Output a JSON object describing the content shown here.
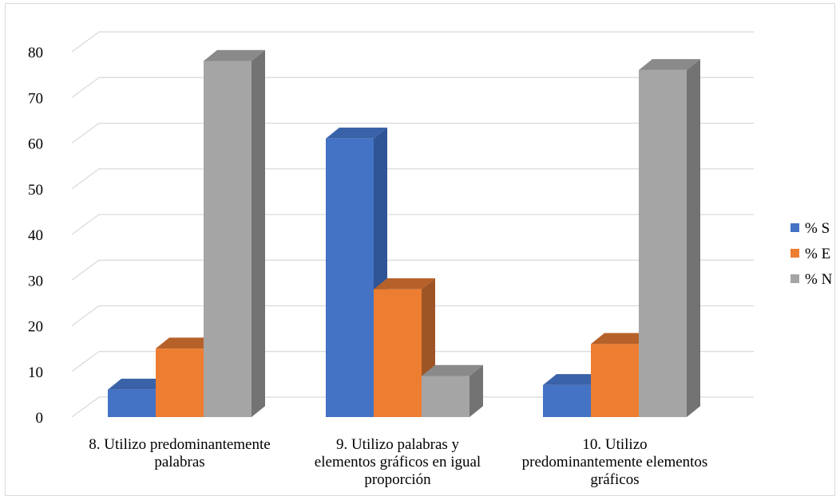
{
  "chart_data": {
    "type": "bar",
    "title": "",
    "xlabel": "",
    "ylabel": "",
    "ylim": [
      0,
      80
    ],
    "yticks": [
      0,
      10,
      20,
      30,
      40,
      50,
      60,
      70,
      80
    ],
    "grid": true,
    "legend_position": "right",
    "categories": [
      [
        "8. Utilizo predominantemente",
        "palabras"
      ],
      [
        "9. Utilizo palabras y",
        "elementos gráficos en igual",
        "proporción"
      ],
      [
        "10. Utilizo",
        "predominantemente elementos",
        "gráficos"
      ]
    ],
    "series": [
      {
        "name": "% S",
        "color": "#4472c4",
        "side": "#2f5597",
        "top": "#3a62a8",
        "values": [
          6,
          61,
          7
        ]
      },
      {
        "name": "% E",
        "color": "#ed7d31",
        "side": "#9e5526",
        "top": "#b6612a",
        "values": [
          15,
          28,
          16
        ]
      },
      {
        "name": "% N",
        "color": "#a5a5a5",
        "side": "#737373",
        "top": "#8a8a8a",
        "values": [
          78,
          9,
          76
        ]
      }
    ]
  }
}
